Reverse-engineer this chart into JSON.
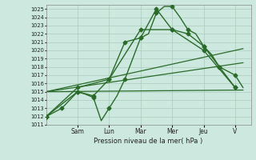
{
  "xlabel": "Pression niveau de la mer( hPa )",
  "background_color": "#cce8df",
  "grid_color": "#aaccbb",
  "line_color": "#2a6b2a",
  "ylim": [
    1011,
    1025.5
  ],
  "ytick_min": 1011,
  "ytick_max": 1025,
  "day_labels": [
    "Sam",
    "Lun",
    "Mar",
    "Mer",
    "Jeu",
    "V"
  ],
  "day_positions": [
    2,
    4,
    6,
    8,
    10,
    12
  ],
  "xlim": [
    0,
    13
  ],
  "series": [
    {
      "x": [
        0,
        0.5,
        1,
        1.5,
        2,
        2.5,
        3,
        3.5,
        4,
        4.5,
        5,
        5.5,
        6,
        6.5,
        7,
        7.5,
        8,
        8.5,
        9,
        9.5,
        10,
        10.5,
        11,
        11.5,
        12,
        12.5
      ],
      "y": [
        1012.0,
        1012.5,
        1013.0,
        1014.0,
        1015.0,
        1014.7,
        1014.3,
        1011.5,
        1013.0,
        1014.5,
        1016.5,
        1019.0,
        1021.5,
        1022.0,
        1024.5,
        1025.3,
        1025.3,
        1024.0,
        1022.5,
        1022.0,
        1020.5,
        1019.5,
        1018.0,
        1017.5,
        1017.0,
        1015.5
      ],
      "marker": "D",
      "markersize": 2.5,
      "linewidth": 1.0,
      "every_marker": 2
    },
    {
      "x": [
        0,
        2,
        3,
        4,
        5,
        6,
        7,
        8,
        9,
        10,
        11,
        12
      ],
      "y": [
        1012.0,
        1015.0,
        1014.5,
        1016.5,
        1021.0,
        1021.5,
        1025.0,
        1022.5,
        1022.0,
        1020.5,
        1018.0,
        1015.5
      ],
      "marker": "D",
      "markersize": 2.5,
      "linewidth": 1.0,
      "every_marker": 1
    },
    {
      "x": [
        0,
        2,
        4,
        6,
        8,
        10,
        12
      ],
      "y": [
        1012.0,
        1015.5,
        1016.5,
        1022.5,
        1022.5,
        1020.0,
        1015.5
      ],
      "marker": "D",
      "markersize": 2.5,
      "linewidth": 1.0,
      "every_marker": 1
    },
    {
      "x": [
        0,
        12.5
      ],
      "y": [
        1015.0,
        1015.2
      ],
      "marker": null,
      "markersize": 0,
      "linewidth": 0.9
    },
    {
      "x": [
        0,
        12.5
      ],
      "y": [
        1015.0,
        1020.2
      ],
      "marker": null,
      "markersize": 0,
      "linewidth": 0.9
    },
    {
      "x": [
        0,
        12.5
      ],
      "y": [
        1015.0,
        1018.5
      ],
      "marker": null,
      "markersize": 0,
      "linewidth": 0.9
    }
  ]
}
